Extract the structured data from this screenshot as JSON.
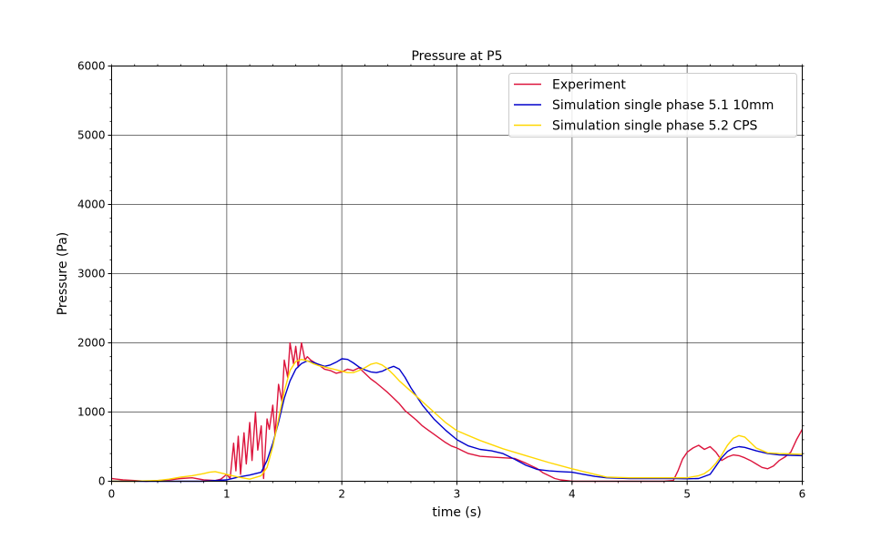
{
  "chart_data": {
    "type": "line",
    "title": "Pressure at P5",
    "xlabel": "time (s)",
    "ylabel": "Pressure (Pa)",
    "xlim": [
      0,
      6
    ],
    "ylim": [
      0,
      6000
    ],
    "xticks": [
      "0",
      "1",
      "2",
      "3",
      "4",
      "5",
      "6"
    ],
    "yticks": [
      "0",
      "1000",
      "2000",
      "3000",
      "4000",
      "5000",
      "6000"
    ],
    "grid": true,
    "legend_position": "upper right",
    "series": [
      {
        "name": "Experiment",
        "color": "#dc143c",
        "x": [
          0.0,
          0.1,
          0.2,
          0.3,
          0.4,
          0.5,
          0.6,
          0.7,
          0.8,
          0.9,
          0.95,
          1.0,
          1.03,
          1.06,
          1.08,
          1.1,
          1.12,
          1.15,
          1.17,
          1.2,
          1.22,
          1.25,
          1.27,
          1.3,
          1.32,
          1.35,
          1.37,
          1.4,
          1.42,
          1.45,
          1.48,
          1.5,
          1.53,
          1.55,
          1.58,
          1.6,
          1.62,
          1.65,
          1.68,
          1.7,
          1.73,
          1.76,
          1.8,
          1.85,
          1.9,
          1.95,
          2.0,
          2.05,
          2.1,
          2.15,
          2.2,
          2.25,
          2.3,
          2.35,
          2.4,
          2.45,
          2.5,
          2.55,
          2.6,
          2.65,
          2.7,
          2.75,
          2.8,
          2.85,
          2.9,
          2.95,
          3.0,
          3.05,
          3.1,
          3.15,
          3.2,
          3.3,
          3.4,
          3.5,
          3.6,
          3.7,
          3.75,
          3.8,
          3.85,
          3.9,
          4.0,
          4.2,
          4.4,
          4.6,
          4.8,
          4.88,
          4.92,
          4.96,
          5.0,
          5.05,
          5.1,
          5.15,
          5.2,
          5.25,
          5.3,
          5.35,
          5.4,
          5.45,
          5.5,
          5.55,
          5.6,
          5.65,
          5.7,
          5.75,
          5.8,
          5.85,
          5.9,
          5.95,
          6.0
        ],
        "values": [
          40,
          20,
          10,
          0,
          10,
          20,
          40,
          50,
          20,
          10,
          30,
          100,
          40,
          550,
          150,
          650,
          100,
          700,
          250,
          850,
          300,
          1000,
          450,
          800,
          40,
          900,
          750,
          1100,
          650,
          1400,
          1150,
          1750,
          1500,
          2000,
          1700,
          1950,
          1650,
          2000,
          1750,
          1800,
          1750,
          1720,
          1680,
          1620,
          1600,
          1560,
          1580,
          1620,
          1600,
          1640,
          1560,
          1480,
          1420,
          1350,
          1280,
          1200,
          1120,
          1020,
          950,
          880,
          800,
          740,
          680,
          620,
          560,
          510,
          480,
          440,
          400,
          380,
          360,
          350,
          340,
          330,
          260,
          180,
          120,
          80,
          40,
          20,
          0,
          0,
          0,
          0,
          0,
          10,
          150,
          320,
          420,
          480,
          520,
          460,
          500,
          420,
          300,
          350,
          380,
          370,
          340,
          300,
          250,
          200,
          180,
          220,
          300,
          350,
          420,
          600,
          750
        ]
      },
      {
        "name": "Simulation single phase 5.1 10mm",
        "color": "#0000cc",
        "x": [
          0.0,
          0.2,
          0.4,
          0.6,
          0.8,
          1.0,
          1.1,
          1.2,
          1.3,
          1.35,
          1.4,
          1.45,
          1.5,
          1.55,
          1.6,
          1.65,
          1.7,
          1.75,
          1.8,
          1.85,
          1.9,
          1.95,
          2.0,
          2.05,
          2.1,
          2.15,
          2.2,
          2.25,
          2.3,
          2.35,
          2.4,
          2.45,
          2.5,
          2.55,
          2.6,
          2.7,
          2.8,
          2.9,
          3.0,
          3.1,
          3.2,
          3.3,
          3.4,
          3.5,
          3.6,
          3.7,
          3.8,
          3.9,
          4.0,
          4.1,
          4.2,
          4.3,
          4.5,
          4.7,
          4.9,
          5.0,
          5.1,
          5.2,
          5.25,
          5.3,
          5.35,
          5.4,
          5.45,
          5.5,
          5.6,
          5.7,
          5.8,
          5.9,
          6.0
        ],
        "values": [
          0,
          0,
          0,
          0,
          0,
          20,
          60,
          90,
          130,
          300,
          550,
          850,
          1200,
          1450,
          1620,
          1700,
          1740,
          1720,
          1690,
          1660,
          1680,
          1720,
          1770,
          1760,
          1710,
          1650,
          1610,
          1580,
          1570,
          1590,
          1630,
          1660,
          1620,
          1500,
          1350,
          1100,
          900,
          740,
          600,
          510,
          460,
          440,
          400,
          320,
          230,
          170,
          150,
          140,
          130,
          100,
          70,
          50,
          40,
          40,
          40,
          35,
          40,
          100,
          220,
          340,
          430,
          480,
          500,
          490,
          440,
          400,
          380,
          375,
          370
        ]
      },
      {
        "name": "Simulation single phase 5.2 CPS",
        "color": "#ffd700",
        "x": [
          0.0,
          0.2,
          0.4,
          0.5,
          0.6,
          0.7,
          0.8,
          0.85,
          0.9,
          0.95,
          1.0,
          1.05,
          1.1,
          1.2,
          1.3,
          1.35,
          1.4,
          1.45,
          1.5,
          1.55,
          1.6,
          1.65,
          1.7,
          1.75,
          1.8,
          1.85,
          1.9,
          1.95,
          2.0,
          2.05,
          2.1,
          2.15,
          2.2,
          2.25,
          2.3,
          2.35,
          2.4,
          2.45,
          2.5,
          2.6,
          2.7,
          2.8,
          2.9,
          3.0,
          3.2,
          3.4,
          3.6,
          3.8,
          4.0,
          4.2,
          4.3,
          4.5,
          4.7,
          4.9,
          5.0,
          5.1,
          5.15,
          5.2,
          5.25,
          5.3,
          5.35,
          5.4,
          5.45,
          5.5,
          5.55,
          5.6,
          5.7,
          5.8,
          5.9,
          6.0
        ],
        "values": [
          0,
          0,
          10,
          30,
          60,
          80,
          110,
          130,
          140,
          120,
          100,
          80,
          60,
          30,
          80,
          200,
          500,
          900,
          1300,
          1600,
          1730,
          1760,
          1740,
          1700,
          1670,
          1650,
          1630,
          1610,
          1590,
          1570,
          1570,
          1600,
          1640,
          1690,
          1710,
          1680,
          1620,
          1540,
          1450,
          1300,
          1150,
          1000,
          850,
          730,
          590,
          470,
          370,
          270,
          180,
          100,
          60,
          50,
          50,
          50,
          50,
          80,
          110,
          170,
          260,
          380,
          520,
          620,
          660,
          640,
          560,
          480,
          410,
          400,
          395,
          390
        ]
      }
    ]
  }
}
